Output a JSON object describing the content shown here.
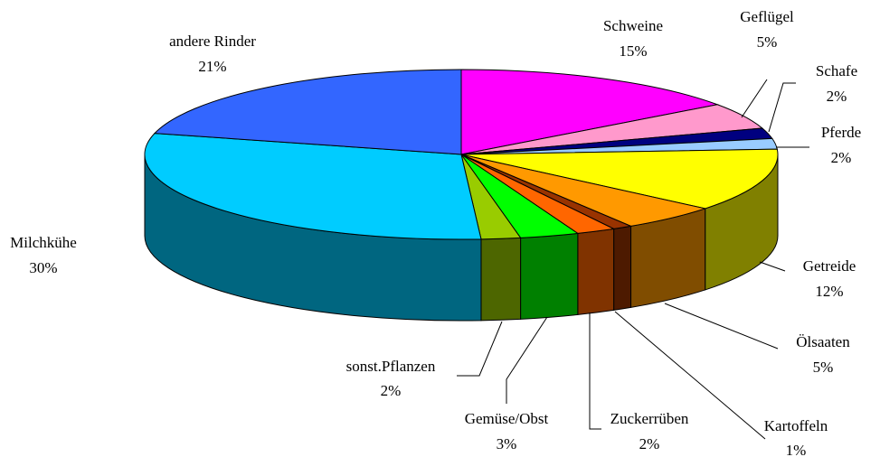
{
  "chart_data": {
    "type": "pie3d",
    "categories": [
      "Schweine",
      "Geflügel",
      "Schafe",
      "Pferde",
      "Getreide",
      "Ölsaaten",
      "Kartoffeln",
      "Zuckerrüben",
      "Gemüse/Obst",
      "sonst.Pflanzen",
      "Milchkühe",
      "andere Rinder"
    ],
    "values": [
      15,
      5,
      2,
      2,
      12,
      5,
      1,
      2,
      3,
      2,
      30,
      21
    ],
    "value_labels": [
      "15%",
      "5%",
      "2%",
      "2%",
      "12%",
      "5%",
      "1%",
      "2%",
      "3%",
      "2%",
      "30%",
      "21%"
    ],
    "colors": [
      "#FF00FF",
      "#FF99CC",
      "#000080",
      "#99CCFF",
      "#FFFF00",
      "#FF9900",
      "#993300",
      "#FF6600",
      "#00FF00",
      "#99CC00",
      "#00CCFF",
      "#3366FF"
    ]
  }
}
